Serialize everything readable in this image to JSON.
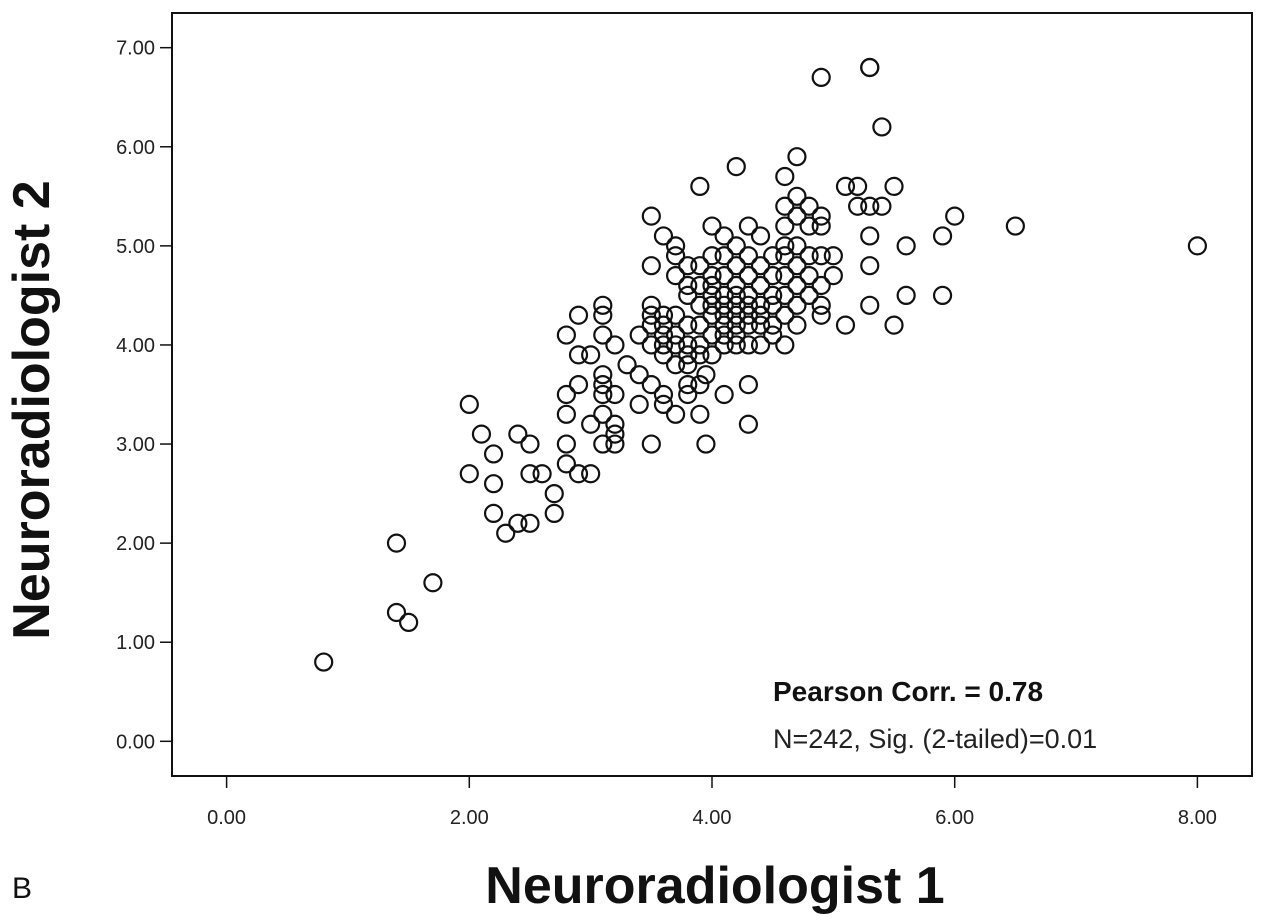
{
  "chart_data": {
    "type": "scatter",
    "panel_label": "B",
    "xlabel": "Neuroradiologist 1",
    "ylabel": "Neuroradiologist 2",
    "xlim": [
      -0.45,
      8.45
    ],
    "ylim": [
      -0.35,
      7.35
    ],
    "xticks": [
      "0.00",
      "2.00",
      "4.00",
      "6.00",
      "8.00"
    ],
    "yticks": [
      "0.00",
      "1.00",
      "2.00",
      "3.00",
      "4.00",
      "5.00",
      "6.00",
      "7.00"
    ],
    "annotation": {
      "line1": "Pearson Corr. = 0.78",
      "line2": "N=242, Sig. (2-tailed)=0.01"
    },
    "grid": false,
    "marker": "open-circle",
    "series": [
      {
        "x": [
          0.8,
          1.4,
          1.4,
          1.5,
          1.7,
          2.0,
          2.0,
          2.1,
          2.2,
          2.2,
          2.2,
          2.3,
          2.4,
          2.4,
          2.5,
          2.5,
          2.5,
          2.6,
          2.7,
          2.7,
          2.8,
          2.8,
          2.8,
          2.8,
          2.8,
          2.9,
          2.9,
          2.9,
          2.9,
          3.0,
          3.0,
          3.0,
          3.1,
          3.1,
          3.1,
          3.1,
          3.1,
          3.1,
          3.1,
          3.1,
          3.2,
          3.2,
          3.2,
          3.2,
          3.2,
          3.3,
          3.4,
          3.4,
          3.4,
          3.5,
          3.5,
          3.5,
          3.5,
          3.5,
          3.5,
          3.5,
          3.5,
          3.6,
          3.6,
          3.6,
          3.6,
          3.6,
          3.6,
          3.6,
          3.6,
          3.7,
          3.7,
          3.7,
          3.7,
          3.7,
          3.7,
          3.7,
          3.7,
          3.8,
          3.8,
          3.8,
          3.8,
          3.8,
          3.8,
          3.8,
          3.8,
          3.8,
          3.9,
          3.9,
          3.9,
          3.9,
          3.9,
          3.9,
          3.9,
          3.9,
          3.9,
          3.95,
          3.95,
          4.0,
          4.0,
          4.0,
          4.0,
          4.0,
          4.0,
          4.0,
          4.0,
          4.0,
          4.1,
          4.1,
          4.1,
          4.1,
          4.1,
          4.1,
          4.1,
          4.1,
          4.1,
          4.1,
          4.2,
          4.2,
          4.2,
          4.2,
          4.2,
          4.2,
          4.2,
          4.2,
          4.2,
          4.2,
          4.3,
          4.3,
          4.3,
          4.3,
          4.3,
          4.3,
          4.3,
          4.3,
          4.3,
          4.3,
          4.4,
          4.4,
          4.4,
          4.4,
          4.4,
          4.4,
          4.4,
          4.5,
          4.5,
          4.5,
          4.5,
          4.5,
          4.5,
          4.6,
          4.6,
          4.6,
          4.6,
          4.6,
          4.6,
          4.6,
          4.6,
          4.6,
          4.7,
          4.7,
          4.7,
          4.7,
          4.7,
          4.7,
          4.7,
          4.7,
          4.8,
          4.8,
          4.8,
          4.8,
          4.8,
          4.9,
          4.9,
          4.9,
          4.9,
          4.9,
          4.9,
          5.0,
          5.0,
          5.1,
          5.1,
          5.2,
          5.2,
          5.3,
          5.3,
          5.3,
          5.3,
          5.3,
          5.4,
          5.4,
          5.5,
          5.5,
          5.6,
          5.6,
          5.9,
          5.9,
          6.0,
          6.5,
          8.0,
          5.3,
          4.9
        ],
        "y": [
          0.8,
          2.0,
          1.3,
          1.2,
          1.6,
          3.4,
          2.7,
          3.1,
          2.9,
          2.6,
          2.3,
          2.1,
          3.1,
          2.2,
          3.0,
          2.7,
          2.2,
          2.7,
          2.5,
          2.3,
          4.1,
          3.5,
          3.3,
          3.0,
          2.8,
          4.3,
          3.9,
          3.6,
          2.7,
          3.9,
          3.2,
          2.7,
          4.4,
          4.3,
          4.1,
          3.7,
          3.6,
          3.5,
          3.3,
          3.0,
          4.0,
          3.5,
          3.2,
          3.1,
          3.0,
          3.8,
          4.1,
          3.7,
          3.4,
          5.3,
          4.8,
          4.4,
          4.3,
          4.2,
          4.0,
          3.6,
          3.0,
          5.1,
          4.3,
          4.2,
          4.1,
          4.0,
          3.9,
          3.5,
          3.4,
          5.0,
          4.9,
          4.7,
          4.3,
          4.1,
          4.0,
          3.8,
          3.3,
          4.8,
          4.6,
          4.5,
          4.2,
          4.0,
          3.9,
          3.8,
          3.6,
          3.5,
          5.6,
          4.8,
          4.6,
          4.4,
          4.2,
          4.0,
          3.9,
          3.6,
          3.3,
          3.7,
          3.0,
          5.2,
          4.9,
          4.7,
          4.6,
          4.5,
          4.4,
          4.3,
          4.1,
          3.9,
          5.1,
          4.9,
          4.7,
          4.5,
          4.4,
          4.3,
          4.2,
          4.1,
          4.0,
          3.5,
          5.8,
          5.0,
          4.8,
          4.6,
          4.5,
          4.4,
          4.3,
          4.2,
          4.1,
          4.0,
          5.2,
          4.9,
          4.7,
          4.5,
          4.4,
          4.3,
          4.2,
          4.0,
          3.6,
          3.2,
          5.1,
          4.8,
          4.6,
          4.4,
          4.3,
          4.2,
          4.0,
          4.9,
          4.7,
          4.5,
          4.4,
          4.2,
          4.1,
          5.7,
          5.4,
          5.2,
          5.0,
          4.9,
          4.7,
          4.5,
          4.3,
          4.0,
          5.9,
          5.5,
          5.3,
          5.0,
          4.8,
          4.6,
          4.4,
          4.2,
          5.4,
          5.2,
          4.9,
          4.7,
          4.5,
          5.3,
          5.2,
          4.9,
          4.6,
          4.4,
          4.3,
          4.9,
          4.7,
          5.6,
          4.2,
          5.6,
          5.4,
          6.8,
          5.4,
          5.1,
          4.8,
          4.4,
          6.2,
          5.4,
          5.6,
          4.2,
          5.0,
          4.5,
          5.1,
          4.5,
          5.3,
          5.2,
          5.0,
          6.8,
          6.7
        ]
      }
    ]
  }
}
